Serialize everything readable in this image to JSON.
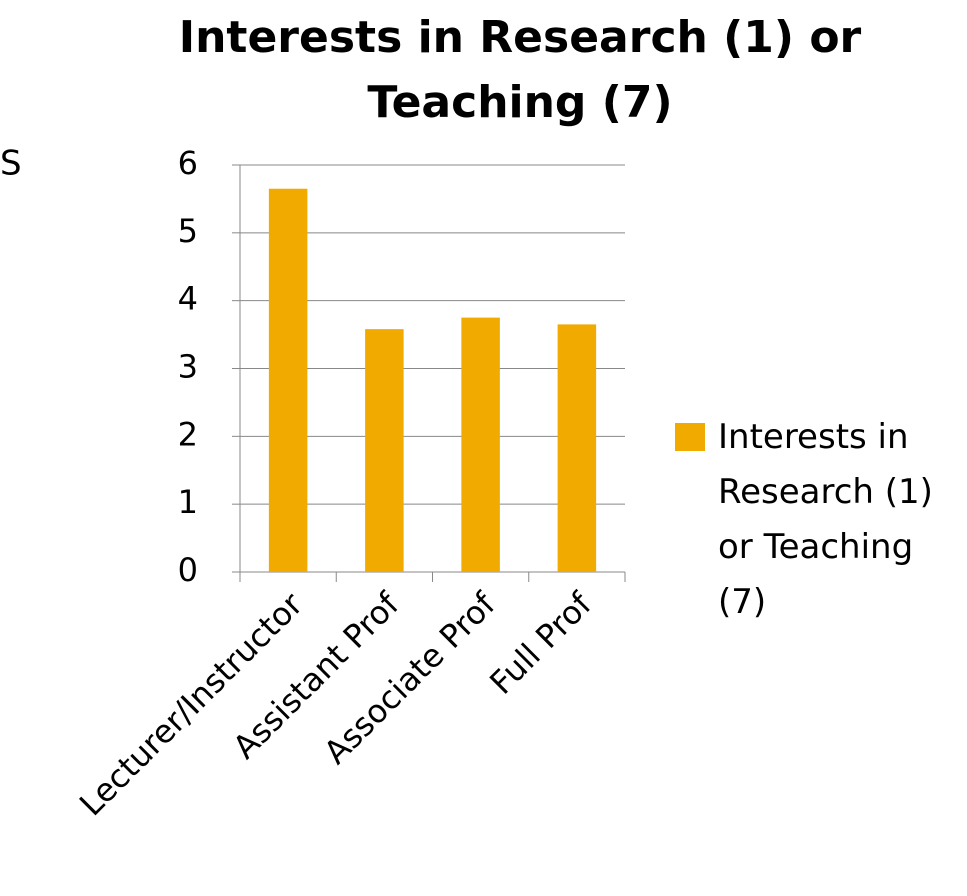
{
  "side_text": "S",
  "chart_data": {
    "type": "bar",
    "title": "Interests in Research (1) or Teaching (7)",
    "categories": [
      "Lecturer/Instructor",
      "Assistant Prof",
      "Associate Prof",
      "Full Prof"
    ],
    "series": [
      {
        "name": "Interests in Research (1) or Teaching (7)",
        "color": "#f0aa00",
        "values": [
          5.65,
          3.58,
          3.75,
          3.65
        ]
      }
    ],
    "ylim": [
      0,
      6
    ],
    "yticks": [
      0,
      1,
      2,
      3,
      4,
      5,
      6
    ],
    "grid": true,
    "legend": "right"
  }
}
